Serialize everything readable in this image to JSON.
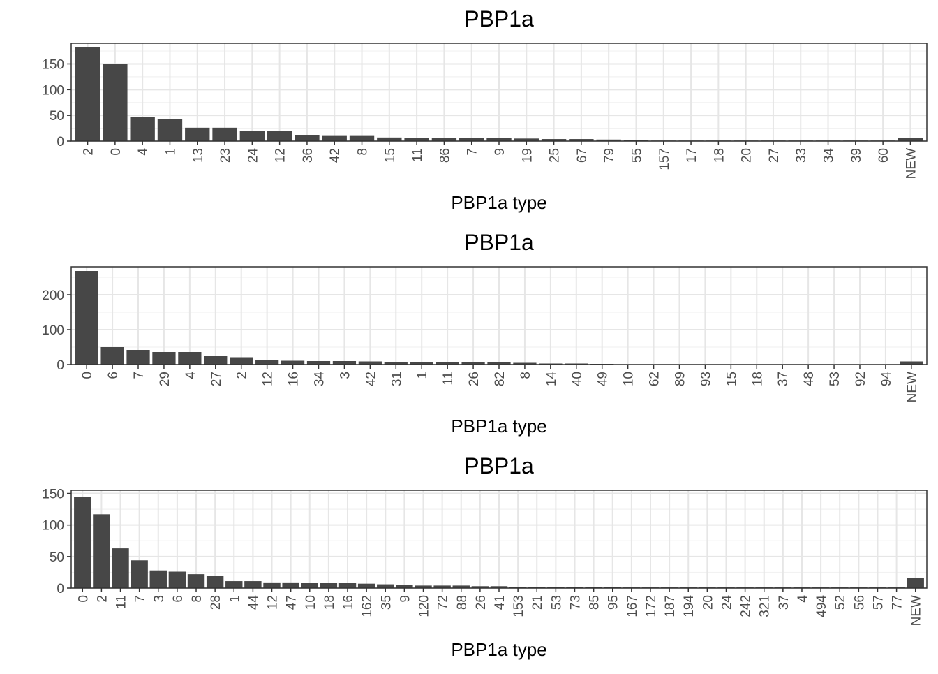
{
  "colors": {
    "bar": "#474747",
    "panel_border": "#333333",
    "grid_major": "#e6e6e6",
    "grid_minor": "#f2f2f2",
    "tick_text": "#4d4d4d",
    "background": "#ffffff"
  },
  "chart_data": [
    {
      "type": "bar",
      "title": "PBP1a",
      "xlabel": "PBP1a type",
      "ylabel": "",
      "grid": true,
      "ylim": [
        0,
        190
      ],
      "yticks": [
        0,
        50,
        100,
        150
      ],
      "categories": [
        "2",
        "0",
        "4",
        "1",
        "13",
        "23",
        "24",
        "12",
        "36",
        "42",
        "8",
        "15",
        "11",
        "86",
        "7",
        "9",
        "19",
        "25",
        "67",
        "79",
        "55",
        "157",
        "17",
        "18",
        "20",
        "27",
        "33",
        "34",
        "39",
        "60",
        "NEW"
      ],
      "values": [
        183,
        150,
        47,
        43,
        26,
        26,
        19,
        19,
        11,
        10,
        10,
        7,
        6,
        6,
        6,
        6,
        5,
        4,
        4,
        3,
        2,
        1,
        1,
        1,
        1,
        1,
        1,
        1,
        1,
        1,
        6
      ]
    },
    {
      "type": "bar",
      "title": "PBP1a",
      "xlabel": "PBP1a type",
      "ylabel": "",
      "grid": true,
      "ylim": [
        0,
        280
      ],
      "yticks": [
        0,
        100,
        200
      ],
      "categories": [
        "0",
        "6",
        "7",
        "29",
        "4",
        "27",
        "2",
        "12",
        "16",
        "34",
        "3",
        "42",
        "31",
        "1",
        "11",
        "26",
        "82",
        "8",
        "14",
        "40",
        "49",
        "10",
        "62",
        "89",
        "93",
        "15",
        "18",
        "37",
        "48",
        "53",
        "92",
        "94",
        "NEW"
      ],
      "values": [
        268,
        50,
        42,
        36,
        36,
        25,
        21,
        12,
        11,
        10,
        10,
        9,
        8,
        7,
        7,
        6,
        6,
        5,
        3,
        3,
        2,
        1,
        1,
        1,
        1,
        1,
        1,
        1,
        1,
        1,
        1,
        1,
        9
      ]
    },
    {
      "type": "bar",
      "title": "PBP1a",
      "xlabel": "PBP1a type",
      "ylabel": "",
      "grid": true,
      "ylim": [
        0,
        155
      ],
      "yticks": [
        0,
        50,
        100,
        150
      ],
      "categories": [
        "0",
        "2",
        "11",
        "7",
        "3",
        "6",
        "8",
        "28",
        "1",
        "44",
        "12",
        "47",
        "10",
        "18",
        "16",
        "162",
        "35",
        "9",
        "120",
        "72",
        "88",
        "26",
        "41",
        "153",
        "21",
        "53",
        "73",
        "85",
        "95",
        "167",
        "172",
        "187",
        "194",
        "20",
        "24",
        "242",
        "321",
        "37",
        "4",
        "494",
        "52",
        "56",
        "57",
        "77",
        "NEW"
      ],
      "values": [
        144,
        117,
        63,
        44,
        28,
        26,
        22,
        19,
        11,
        11,
        9,
        9,
        8,
        8,
        8,
        7,
        6,
        5,
        4,
        4,
        4,
        3,
        3,
        2,
        2,
        2,
        2,
        2,
        2,
        1,
        1,
        1,
        1,
        1,
        1,
        1,
        1,
        1,
        1,
        1,
        1,
        1,
        1,
        1,
        16
      ]
    }
  ]
}
